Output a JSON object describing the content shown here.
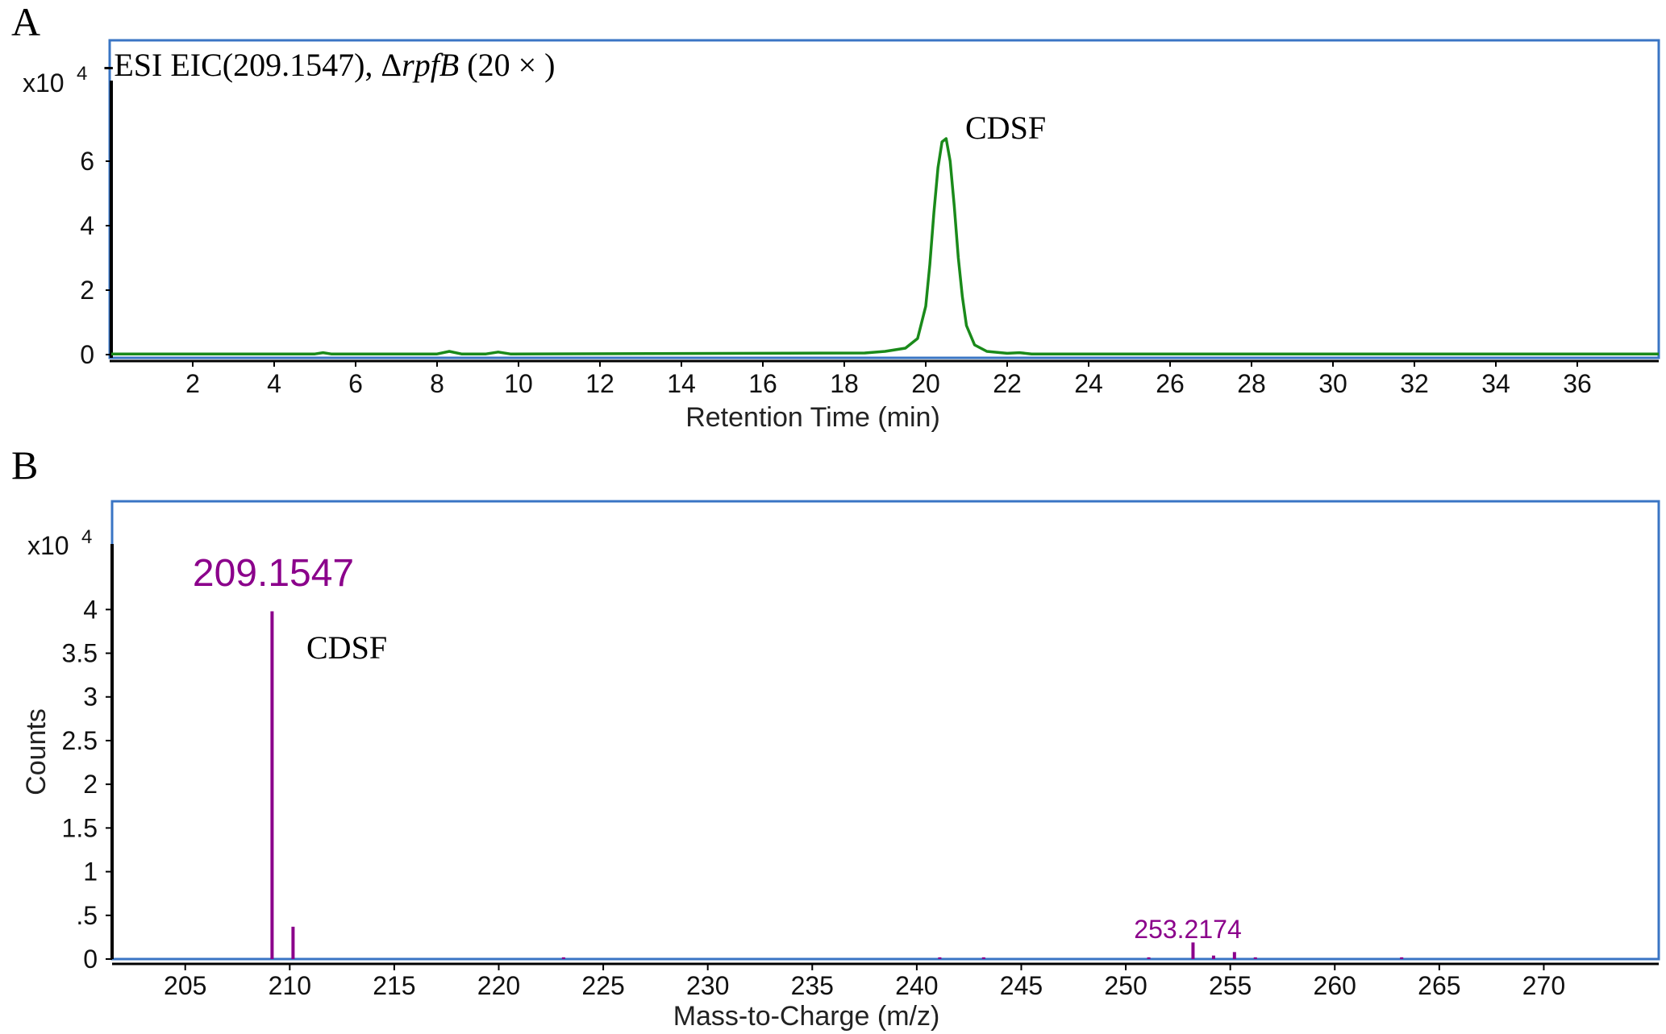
{
  "panels": {
    "a_letter": "A",
    "b_letter": "B"
  },
  "colors": {
    "frame": "#3a75c4",
    "trace": "#1a8a1a",
    "spectrum": "#8b008b"
  },
  "chart_data": [
    {
      "type": "line",
      "title_prefix": "-ESI EIC(209.1547), Δ",
      "title_italic": "rpfB",
      "title_suffix": " (20 × )",
      "xlabel": "Retention Time (min)",
      "ylabel": "",
      "y_multiplier_base": "x10",
      "y_multiplier_exp": "4",
      "xlim": [
        0,
        38
      ],
      "ylim": [
        0,
        8.5
      ],
      "x_ticks": [
        2,
        4,
        6,
        8,
        10,
        12,
        14,
        16,
        18,
        20,
        22,
        24,
        26,
        28,
        30,
        32,
        34,
        36
      ],
      "y_ticks": [
        0,
        2,
        4,
        6
      ],
      "annotation": "CDSF",
      "series": [
        {
          "x": [
            0,
            5.0,
            5.2,
            5.4,
            8.0,
            8.3,
            8.6,
            9.2,
            9.5,
            9.8,
            18.5,
            19.0,
            19.5,
            19.8,
            20.0,
            20.1,
            20.2,
            20.3,
            20.4,
            20.5,
            20.6,
            20.7,
            20.8,
            20.9,
            21.0,
            21.2,
            21.5,
            22.0,
            22.3,
            22.6,
            38
          ],
          "y": [
            0.02,
            0.02,
            0.06,
            0.02,
            0.02,
            0.1,
            0.02,
            0.02,
            0.08,
            0.02,
            0.05,
            0.1,
            0.2,
            0.5,
            1.5,
            2.8,
            4.4,
            5.8,
            6.6,
            6.7,
            6.0,
            4.6,
            3.0,
            1.8,
            0.9,
            0.3,
            0.1,
            0.04,
            0.06,
            0.02,
            0.02
          ]
        }
      ]
    },
    {
      "type": "bar",
      "title": "",
      "xlabel": "Mass-to-Charge (m/z)",
      "ylabel": "Counts",
      "y_multiplier_base": "x10",
      "y_multiplier_exp": "4",
      "xlim": [
        201.5,
        275.5
      ],
      "ylim": [
        0,
        4.75
      ],
      "x_ticks": [
        205,
        210,
        215,
        220,
        225,
        230,
        235,
        240,
        245,
        250,
        255,
        260,
        265,
        270
      ],
      "y_ticks": [
        0,
        0.5,
        1,
        1.5,
        2,
        2.5,
        3,
        3.5,
        4
      ],
      "y_tick_labels": [
        "0",
        ".5",
        "1",
        "1.5",
        "2",
        "2.5",
        "3",
        "3.5",
        "4"
      ],
      "peak_labels": [
        "209.1547",
        "253.2174"
      ],
      "annotation": "CDSF",
      "series": [
        {
          "x": [
            209.1547,
            210.158,
            223.1,
            241.1,
            243.2,
            251.1,
            253.2174,
            254.2,
            255.2,
            256.2,
            263.2
          ],
          "y": [
            3.98,
            0.37,
            0.02,
            0.02,
            0.02,
            0.02,
            0.19,
            0.04,
            0.08,
            0.02,
            0.02
          ]
        }
      ]
    }
  ]
}
